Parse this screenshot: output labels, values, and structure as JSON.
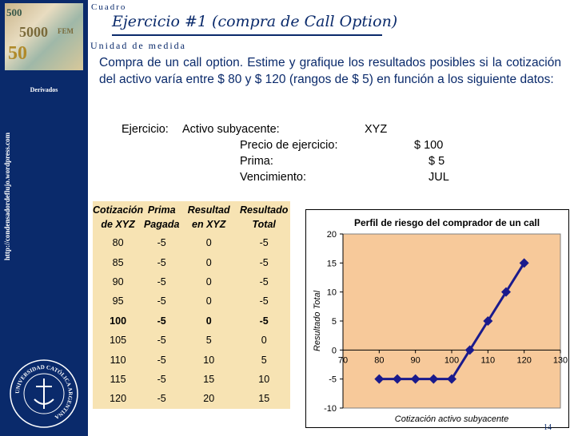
{
  "sidebar": {
    "label": "Derivados",
    "url": "http://condensadordeflujo.wordpress.com",
    "photo_bills": [
      "5000",
      "500",
      "50",
      "FEM"
    ],
    "seal_text": "UNIVERSIDAD CATÓLICA ARGENTINA"
  },
  "header": {
    "top_label": "Cuadro",
    "title": "Ejercicio #1 (compra de Call Option)",
    "unit_label": "Unidad de medida"
  },
  "intro": "Compra de un call option. Estime y grafique los resultados posibles si la cotización del activo varía entre $ 80 y $ 120 (rangos de $ 5) en función a los siguiente datos:",
  "data": {
    "prefix": "Ejercicio:",
    "rows": [
      {
        "label": "Activo subyacente:",
        "value": "XYZ"
      },
      {
        "label": "Precio de ejercicio:",
        "value": "$ 100"
      },
      {
        "label": "Prima:",
        "value": "$ 5"
      },
      {
        "label": "Vencimiento:",
        "value": "JUL"
      }
    ]
  },
  "table": {
    "headers": [
      [
        "Cotización",
        "de XYZ"
      ],
      [
        "Prima",
        "Pagada"
      ],
      [
        "Resultad",
        "en XYZ"
      ],
      [
        "Resultado",
        "Total"
      ]
    ],
    "rows": [
      [
        "80",
        "-5",
        "0",
        "-5"
      ],
      [
        "85",
        "-5",
        "0",
        "-5"
      ],
      [
        "90",
        "-5",
        "0",
        "-5"
      ],
      [
        "95",
        "-5",
        "0",
        "-5"
      ],
      [
        "100",
        "-5",
        "0",
        "-5"
      ],
      [
        "105",
        "-5",
        "5",
        "0"
      ],
      [
        "110",
        "-5",
        "10",
        "5"
      ],
      [
        "115",
        "-5",
        "15",
        "10"
      ],
      [
        "120",
        "-5",
        "20",
        "15"
      ]
    ],
    "highlight_row": 4
  },
  "chart_data": {
    "type": "line",
    "title": "Perfil de riesgo del comprador de un call",
    "xlabel": "Cotización activo subyacente",
    "ylabel": "Resultado Total",
    "x": [
      80,
      85,
      90,
      95,
      100,
      105,
      110,
      115,
      120
    ],
    "y": [
      -5,
      -5,
      -5,
      -5,
      -5,
      0,
      5,
      10,
      15
    ],
    "xlim": [
      70,
      130
    ],
    "ylim": [
      -10,
      20
    ],
    "xticks": [
      70,
      80,
      90,
      100,
      110,
      120,
      130
    ],
    "yticks": [
      -10,
      -5,
      0,
      5,
      10,
      15,
      20
    ],
    "plot_bg": "#f7c99a",
    "line_color": "#1a1a8c",
    "grid": false,
    "legend": "none"
  },
  "page_number": "14",
  "colors": {
    "navy": "#0a2a6b",
    "table_bg": "#f7e3b3"
  }
}
